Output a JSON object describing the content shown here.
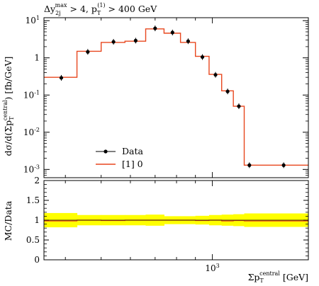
{
  "chart_data": [
    {
      "type": "line",
      "title": "Δy_2j^max > 4, p_T^(1) > 400 GeV",
      "ylabel": "dσ/d(Σp_T^central) [fb/GeV]",
      "yscale": "log",
      "ylim": [
        0.0006,
        12
      ],
      "xscale": "log",
      "y_ticks": [
        "10^1",
        "1",
        "10^-1",
        "10^-2",
        "10^-3"
      ],
      "series": [
        {
          "name": "Data",
          "style": "points",
          "color": "#000000",
          "x": [
            390,
            460,
            540,
            620,
            700,
            780,
            860,
            940,
            1020,
            1100,
            1180,
            1260,
            1560
          ],
          "y": [
            0.29,
            1.45,
            2.7,
            2.9,
            6.2,
            4.8,
            2.8,
            1.05,
            0.35,
            0.125,
            0.05,
            0.0013,
            0.0013
          ]
        },
        {
          "name": "[1] 0",
          "style": "step",
          "color": "#e8471e",
          "edges": [
            350,
            430,
            500,
            580,
            660,
            740,
            820,
            900,
            980,
            1060,
            1140,
            1220,
            1300,
            1820
          ],
          "values": [
            0.3,
            1.5,
            2.6,
            2.8,
            6.0,
            4.6,
            2.6,
            1.1,
            0.36,
            0.13,
            0.05,
            0.0013,
            0.0013
          ]
        }
      ],
      "legend_position": "bottom-left"
    },
    {
      "type": "area",
      "ylabel": "MC/Data",
      "xlabel": "Σp_T^central [GeV]",
      "ylim": [
        0,
        2
      ],
      "y_ticks": [
        "0",
        "0.5",
        "1",
        "1.5",
        "2"
      ],
      "x_ticks": [
        "10^3"
      ],
      "band_color": "#ffff00",
      "band_edges": [
        350,
        430,
        500,
        580,
        660,
        740,
        820,
        900,
        980,
        1060,
        1140,
        1220,
        1300,
        1820
      ],
      "band_lower": [
        0.82,
        0.87,
        0.87,
        0.87,
        0.86,
        0.9,
        0.9,
        0.89,
        0.87,
        0.86,
        0.85,
        0.83,
        0.83
      ],
      "band_upper": [
        1.18,
        1.13,
        1.13,
        1.13,
        1.14,
        1.1,
        1.1,
        1.11,
        1.13,
        1.14,
        1.15,
        1.17,
        1.17
      ],
      "ratio_line": [
        0.98,
        1.0,
        0.99,
        1.0,
        1.0,
        1.0,
        1.0,
        0.99,
        1.0,
        0.98,
        0.99,
        0.98,
        0.98
      ]
    }
  ],
  "text": {
    "cut_base": "Δy",
    "cut_sub": "2j",
    "cut_sup": "max",
    "cut_mid": " > 4, p",
    "cut_sub2": "T",
    "cut_sup2": "(1)",
    "cut_end": " > 400 GeV",
    "ylabel_main": "dσ/d(Σp",
    "ylabel_sub": "T",
    "ylabel_sup": "central",
    "ylabel_end": ") [fb/GeV]",
    "ylabel_ratio": "MC/Data",
    "xlabel_main": "Σp",
    "xlabel_sub": "T",
    "xlabel_sup": "central",
    "xlabel_end": " [GeV]",
    "legend_data": "Data",
    "legend_mc": "[1] 0"
  }
}
